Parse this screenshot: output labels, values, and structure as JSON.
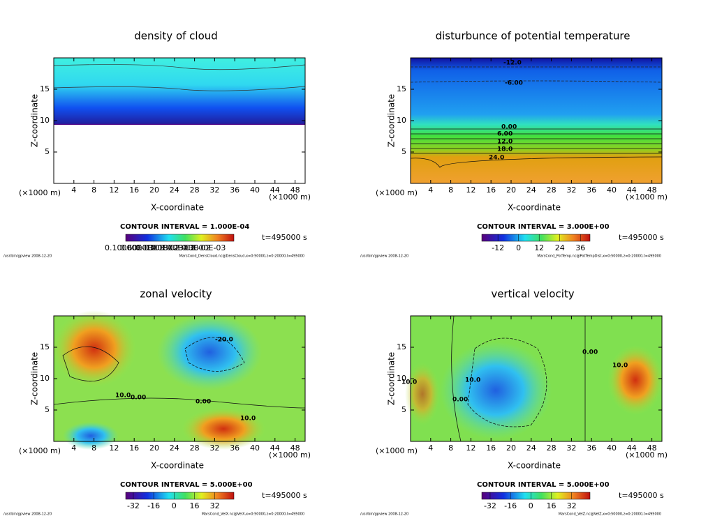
{
  "chart_data": [
    {
      "type": "contour",
      "title": "density of cloud",
      "xlabel": "X-coordinate",
      "ylabel": "Z-coordinate",
      "unit_label": "(×1000 m)",
      "xlim": [
        0,
        50
      ],
      "xticks": [
        4,
        8,
        12,
        16,
        20,
        24,
        28,
        32,
        36,
        40,
        44,
        48
      ],
      "ylim": [
        0,
        20
      ],
      "yticks": [
        5,
        10,
        15
      ],
      "contour_interval": "CONTOUR INTERVAL = 1.000E-04",
      "time_label": "t=495000 s",
      "colorbar_labels": [
        "0.10000E-03",
        "0.6000E-03",
        "0.1000E-02",
        "0.1800E-02",
        "0.2300E-02",
        "0.3000E-03"
      ],
      "contour_labels": [],
      "footer": "/usr/bin/gpview   2008-12-20",
      "source": "MarsCond_DensCloud.nc@DensCloud,x=0:50000,z=0:20000,t=495000"
    },
    {
      "type": "contour",
      "title": "disturbunce of potential temperature",
      "xlabel": "X-coordinate",
      "ylabel": "Z-coordinate",
      "unit_label": "(×1000 m)",
      "xlim": [
        0,
        50
      ],
      "xticks": [
        4,
        8,
        12,
        16,
        20,
        24,
        28,
        32,
        36,
        40,
        44,
        48
      ],
      "ylim": [
        0,
        20
      ],
      "yticks": [
        5,
        10,
        15
      ],
      "contour_interval": "CONTOUR INTERVAL = 3.000E+00",
      "time_label": "t=495000 s",
      "clim": [
        -21,
        42
      ],
      "colorbar_ticks": [
        -12,
        0,
        12,
        24,
        36
      ],
      "contour_labels": [
        "-12.0",
        "-6.00",
        "0.00",
        "6.00",
        "12.0",
        "18.0",
        "24.0"
      ],
      "footer": "/usr/bin/gpview   2008-12-20",
      "source": "MarsCond_PotTemp.nc@PotTempDist,x=0:50000,z=0:20000,t=495000"
    },
    {
      "type": "contour",
      "title": "zonal velocity",
      "xlabel": "X-coordinate",
      "ylabel": "Z-coordinate",
      "unit_label": "(×1000 m)",
      "xlim": [
        0,
        50
      ],
      "xticks": [
        4,
        8,
        12,
        16,
        20,
        24,
        28,
        32,
        36,
        40,
        44,
        48
      ],
      "ylim": [
        0,
        20
      ],
      "yticks": [
        5,
        10,
        15
      ],
      "contour_interval": "CONTOUR INTERVAL = 5.000E+00",
      "time_label": "t=495000 s",
      "clim": [
        -38,
        47
      ],
      "colorbar_ticks": [
        -32,
        -16,
        0,
        16,
        32
      ],
      "contour_labels": [
        "-20.0",
        "10.0",
        "0.00",
        "0.00",
        "10.0"
      ],
      "footer": "/usr/bin/gpview   2008-12-20",
      "source": "MarsCond_VelX.nc@VelX,x=0:50000,z=0:20000,t=495000"
    },
    {
      "type": "contour",
      "title": "vertical velocity",
      "xlabel": "X-coordinate",
      "ylabel": "Z-coordinate",
      "unit_label": "(×1000 m)",
      "xlim": [
        0,
        50
      ],
      "xticks": [
        4,
        8,
        12,
        16,
        20,
        24,
        28,
        32,
        36,
        40,
        44,
        48
      ],
      "ylim": [
        0,
        20
      ],
      "yticks": [
        5,
        10,
        15
      ],
      "contour_interval": "CONTOUR INTERVAL = 5.000E+00",
      "time_label": "t=495000 s",
      "clim": [
        -38,
        47
      ],
      "colorbar_ticks": [
        -32,
        -16,
        0,
        16,
        32
      ],
      "contour_labels": [
        "10.0",
        "0.00",
        "10.0",
        "0.00",
        "10.0"
      ],
      "footer": "/usr/bin/gpview   2008-12-20",
      "source": "MarsCond_VelZ.nc@VelZ,x=0:50000,z=0:20000,t=495000"
    }
  ]
}
